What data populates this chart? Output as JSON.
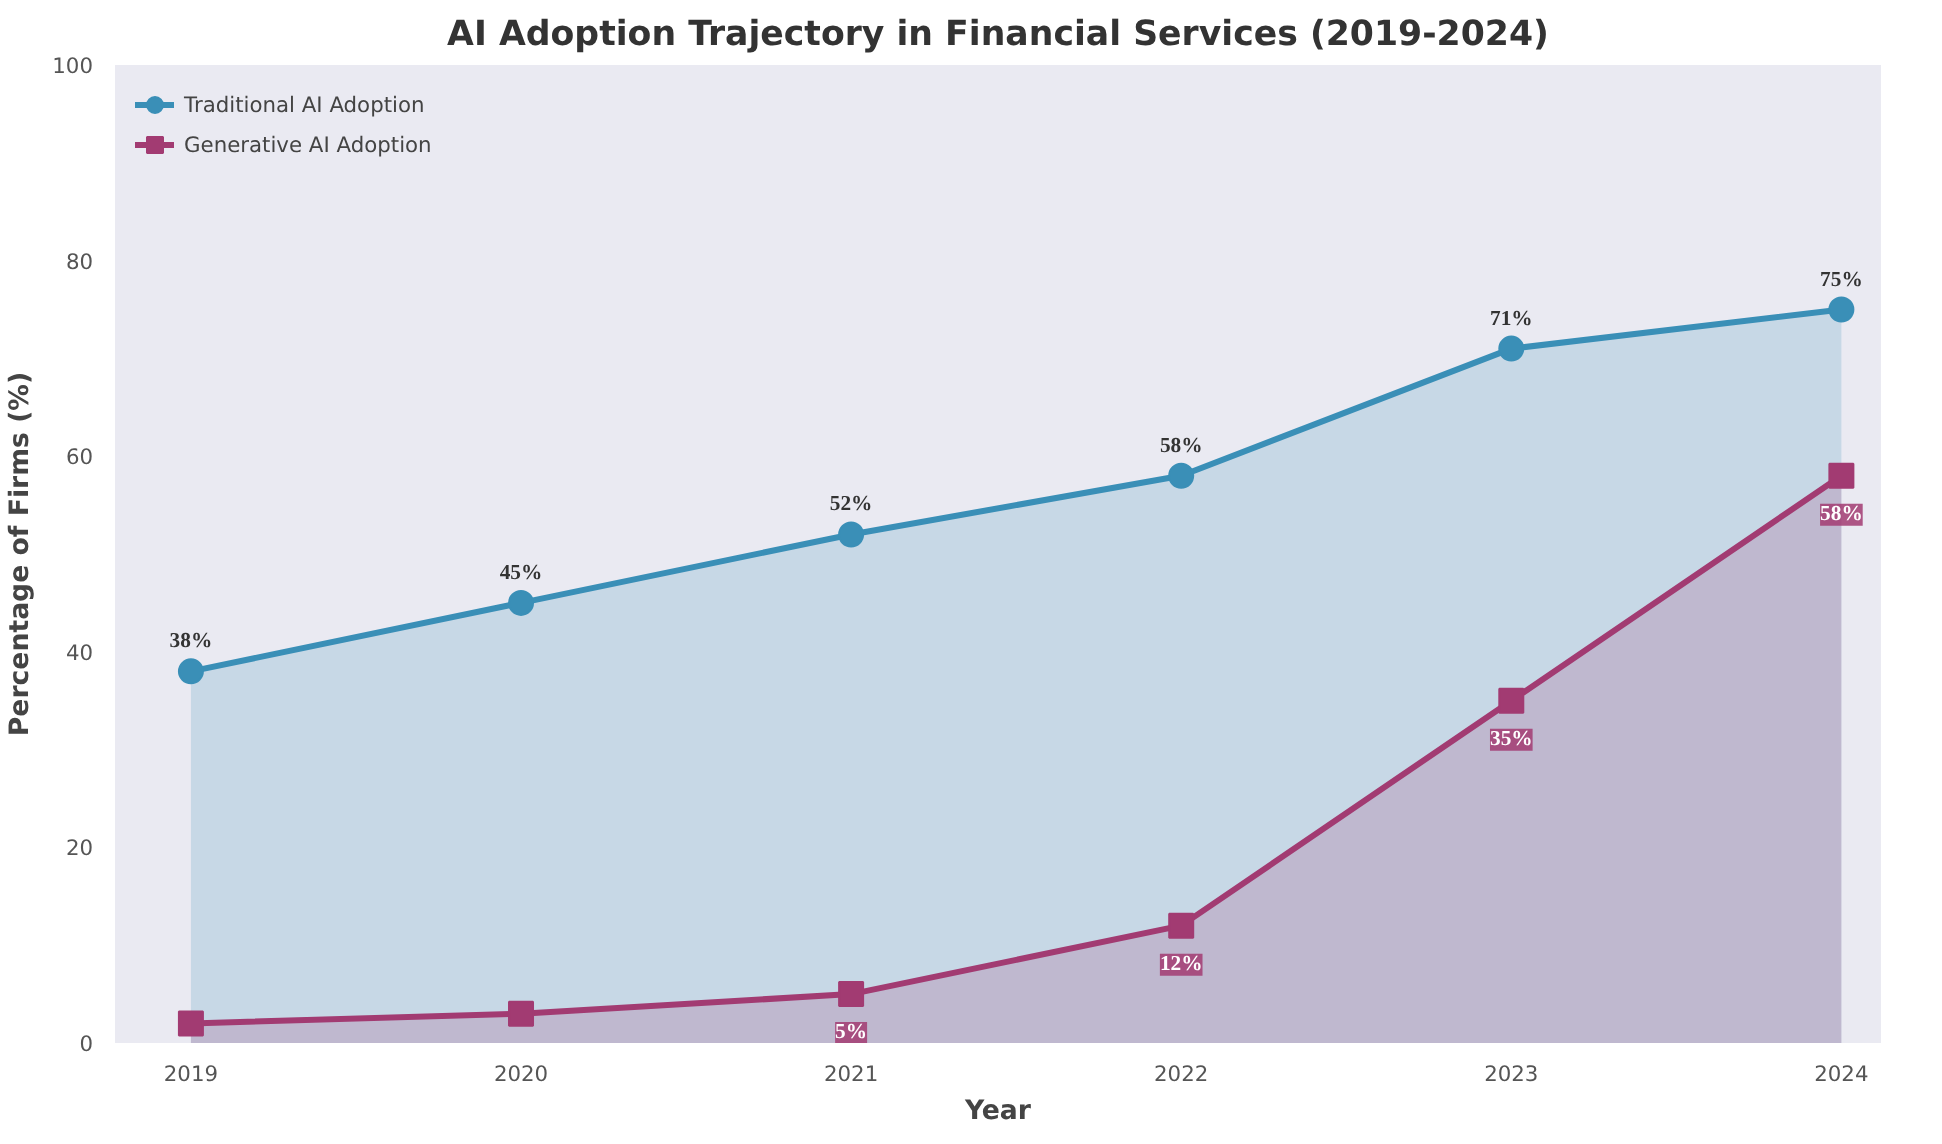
{
  "chart_data": {
    "type": "area",
    "title": "AI Adoption Trajectory in Financial Services (2019-2024)",
    "xlabel": "Year",
    "ylabel": "Percentage of Firms (%)",
    "x": [
      2019,
      2020,
      2021,
      2022,
      2023,
      2024
    ],
    "series": [
      {
        "name": "Traditional AI Adoption",
        "color": "#3a8fb7",
        "marker": "circle",
        "values": [
          38,
          45,
          52,
          58,
          71,
          75
        ],
        "value_labels": [
          "38%",
          "45%",
          "52%",
          "58%",
          "71%",
          "75%"
        ]
      },
      {
        "name": "Generative AI Adoption",
        "color": "#a23b72",
        "marker": "square",
        "values": [
          2,
          3,
          5,
          12,
          35,
          58
        ],
        "value_labels": [
          null,
          null,
          "5%",
          "12%",
          "35%",
          "58%"
        ]
      }
    ],
    "xlim": [
      2018.77,
      2024.12
    ],
    "xticks": [
      2019,
      2020,
      2021,
      2022,
      2023,
      2024
    ],
    "ylim": [
      0,
      100
    ],
    "yticks": [
      0,
      20,
      40,
      60,
      80,
      100
    ],
    "legend": "top left",
    "grid": false
  }
}
